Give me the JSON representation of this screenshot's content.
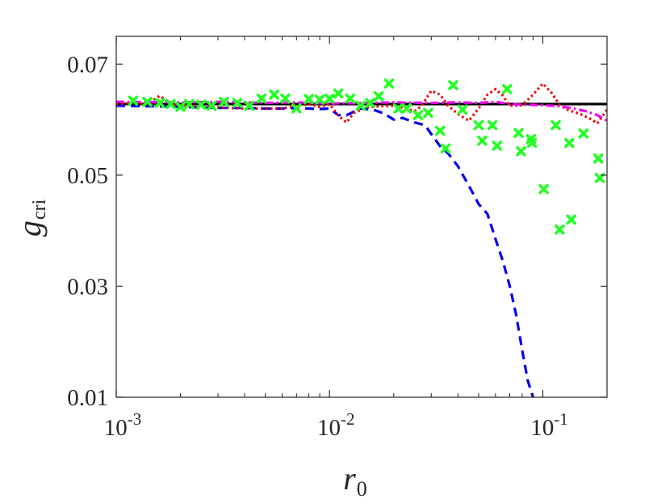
{
  "chart_data": {
    "type": "line",
    "title": "",
    "xlabel": {
      "main": "r",
      "sub": "0"
    },
    "ylabel": {
      "main": "g",
      "sub": "cri"
    },
    "xscale": "log",
    "xlim": [
      0.001,
      0.2
    ],
    "ylim": [
      0.01,
      0.075
    ],
    "grid": false,
    "legend": "none",
    "x_ticks": [
      {
        "value": 0.001,
        "base": "10",
        "exp": "-3"
      },
      {
        "value": 0.01,
        "base": "10",
        "exp": "-2"
      },
      {
        "value": 0.1,
        "base": "10",
        "exp": "-1"
      }
    ],
    "y_ticks": [
      {
        "value": 0.01,
        "label": "0.01"
      },
      {
        "value": 0.03,
        "label": "0.03"
      },
      {
        "value": 0.05,
        "label": "0.05"
      },
      {
        "value": 0.07,
        "label": "0.07"
      }
    ],
    "series": [
      {
        "name": "solid-black",
        "style": "solid",
        "color": "#000000",
        "x": [
          0.001,
          0.2
        ],
        "y": [
          0.0628,
          0.0628
        ]
      },
      {
        "name": "dashed-blue",
        "style": "dashed",
        "color": "#0000ee",
        "x": [
          0.001,
          0.0015,
          0.002,
          0.003,
          0.004,
          0.005,
          0.006,
          0.007,
          0.008,
          0.009,
          0.01,
          0.011,
          0.012,
          0.014,
          0.016,
          0.018,
          0.02,
          0.022,
          0.025,
          0.028,
          0.03,
          0.033,
          0.036,
          0.04,
          0.045,
          0.05,
          0.055,
          0.06,
          0.065,
          0.07,
          0.075,
          0.08,
          0.085,
          0.09
        ],
        "y": [
          0.0625,
          0.0624,
          0.0623,
          0.0621,
          0.0621,
          0.062,
          0.062,
          0.0621,
          0.062,
          0.0619,
          0.062,
          0.0608,
          0.0608,
          0.062,
          0.0618,
          0.0611,
          0.06,
          0.0603,
          0.0595,
          0.059,
          0.0574,
          0.0552,
          0.0539,
          0.0516,
          0.0481,
          0.0448,
          0.043,
          0.0385,
          0.0345,
          0.03,
          0.0248,
          0.0185,
          0.013,
          0.01
        ]
      },
      {
        "name": "dotted-red",
        "style": "dotted",
        "color": "#ee0000",
        "x": [
          0.001,
          0.0012,
          0.0014,
          0.0016,
          0.0018,
          0.002,
          0.0025,
          0.003,
          0.004,
          0.005,
          0.006,
          0.007,
          0.008,
          0.009,
          0.01,
          0.011,
          0.012,
          0.013,
          0.015,
          0.017,
          0.02,
          0.023,
          0.025,
          0.027,
          0.03,
          0.033,
          0.036,
          0.04,
          0.045,
          0.05,
          0.055,
          0.06,
          0.065,
          0.07,
          0.08,
          0.09,
          0.1,
          0.11,
          0.12,
          0.13,
          0.15,
          0.17,
          0.18,
          0.2
        ],
        "y": [
          0.0628,
          0.063,
          0.0628,
          0.0643,
          0.0628,
          0.0626,
          0.0624,
          0.0622,
          0.062,
          0.062,
          0.062,
          0.0625,
          0.0628,
          0.0623,
          0.0628,
          0.0607,
          0.0595,
          0.0612,
          0.0622,
          0.0624,
          0.0625,
          0.062,
          0.0615,
          0.0625,
          0.0652,
          0.0645,
          0.0625,
          0.061,
          0.0598,
          0.062,
          0.0645,
          0.0655,
          0.0643,
          0.0625,
          0.0626,
          0.0645,
          0.0665,
          0.0648,
          0.0626,
          0.0618,
          0.061,
          0.06,
          0.0593,
          0.0618
        ]
      },
      {
        "name": "dashdot-magenta",
        "style": "dashdot",
        "color": "#ee00ee",
        "x": [
          0.001,
          0.002,
          0.003,
          0.005,
          0.007,
          0.01,
          0.015,
          0.02,
          0.03,
          0.04,
          0.05,
          0.06,
          0.07,
          0.08,
          0.1,
          0.12,
          0.14,
          0.16,
          0.18,
          0.2
        ],
        "y": [
          0.0632,
          0.0631,
          0.0632,
          0.063,
          0.0631,
          0.0629,
          0.063,
          0.0631,
          0.063,
          0.0631,
          0.063,
          0.0632,
          0.0628,
          0.0627,
          0.0626,
          0.0624,
          0.062,
          0.0615,
          0.0608,
          0.0598
        ]
      },
      {
        "name": "markers-green",
        "style": "marker-x",
        "color": "#22ff22",
        "x": [
          0.0012,
          0.0014,
          0.0016,
          0.0018,
          0.002,
          0.0022,
          0.0025,
          0.0028,
          0.0032,
          0.0037,
          0.0042,
          0.0048,
          0.0055,
          0.0062,
          0.007,
          0.008,
          0.009,
          0.01,
          0.011,
          0.0125,
          0.014,
          0.0155,
          0.017,
          0.019,
          0.021,
          0.023,
          0.026,
          0.029,
          0.033,
          0.035,
          0.038,
          0.042,
          0.05,
          0.052,
          0.058,
          0.061,
          0.068,
          0.077,
          0.079,
          0.088,
          0.089,
          0.101,
          0.115,
          0.12,
          0.133,
          0.136,
          0.155,
          0.182,
          0.185
        ],
        "y": [
          0.0634,
          0.0632,
          0.063,
          0.0628,
          0.0623,
          0.0628,
          0.0627,
          0.0625,
          0.0632,
          0.063,
          0.0625,
          0.0638,
          0.0645,
          0.0638,
          0.062,
          0.0637,
          0.0636,
          0.0638,
          0.0647,
          0.0638,
          0.0625,
          0.063,
          0.0642,
          0.0665,
          0.062,
          0.062,
          0.0608,
          0.0612,
          0.058,
          0.0548,
          0.0662,
          0.0618,
          0.059,
          0.0562,
          0.059,
          0.0553,
          0.0655,
          0.0576,
          0.0543,
          0.0565,
          0.0558,
          0.0475,
          0.059,
          0.0402,
          0.0558,
          0.042,
          0.0575,
          0.053,
          0.0495
        ]
      }
    ]
  }
}
